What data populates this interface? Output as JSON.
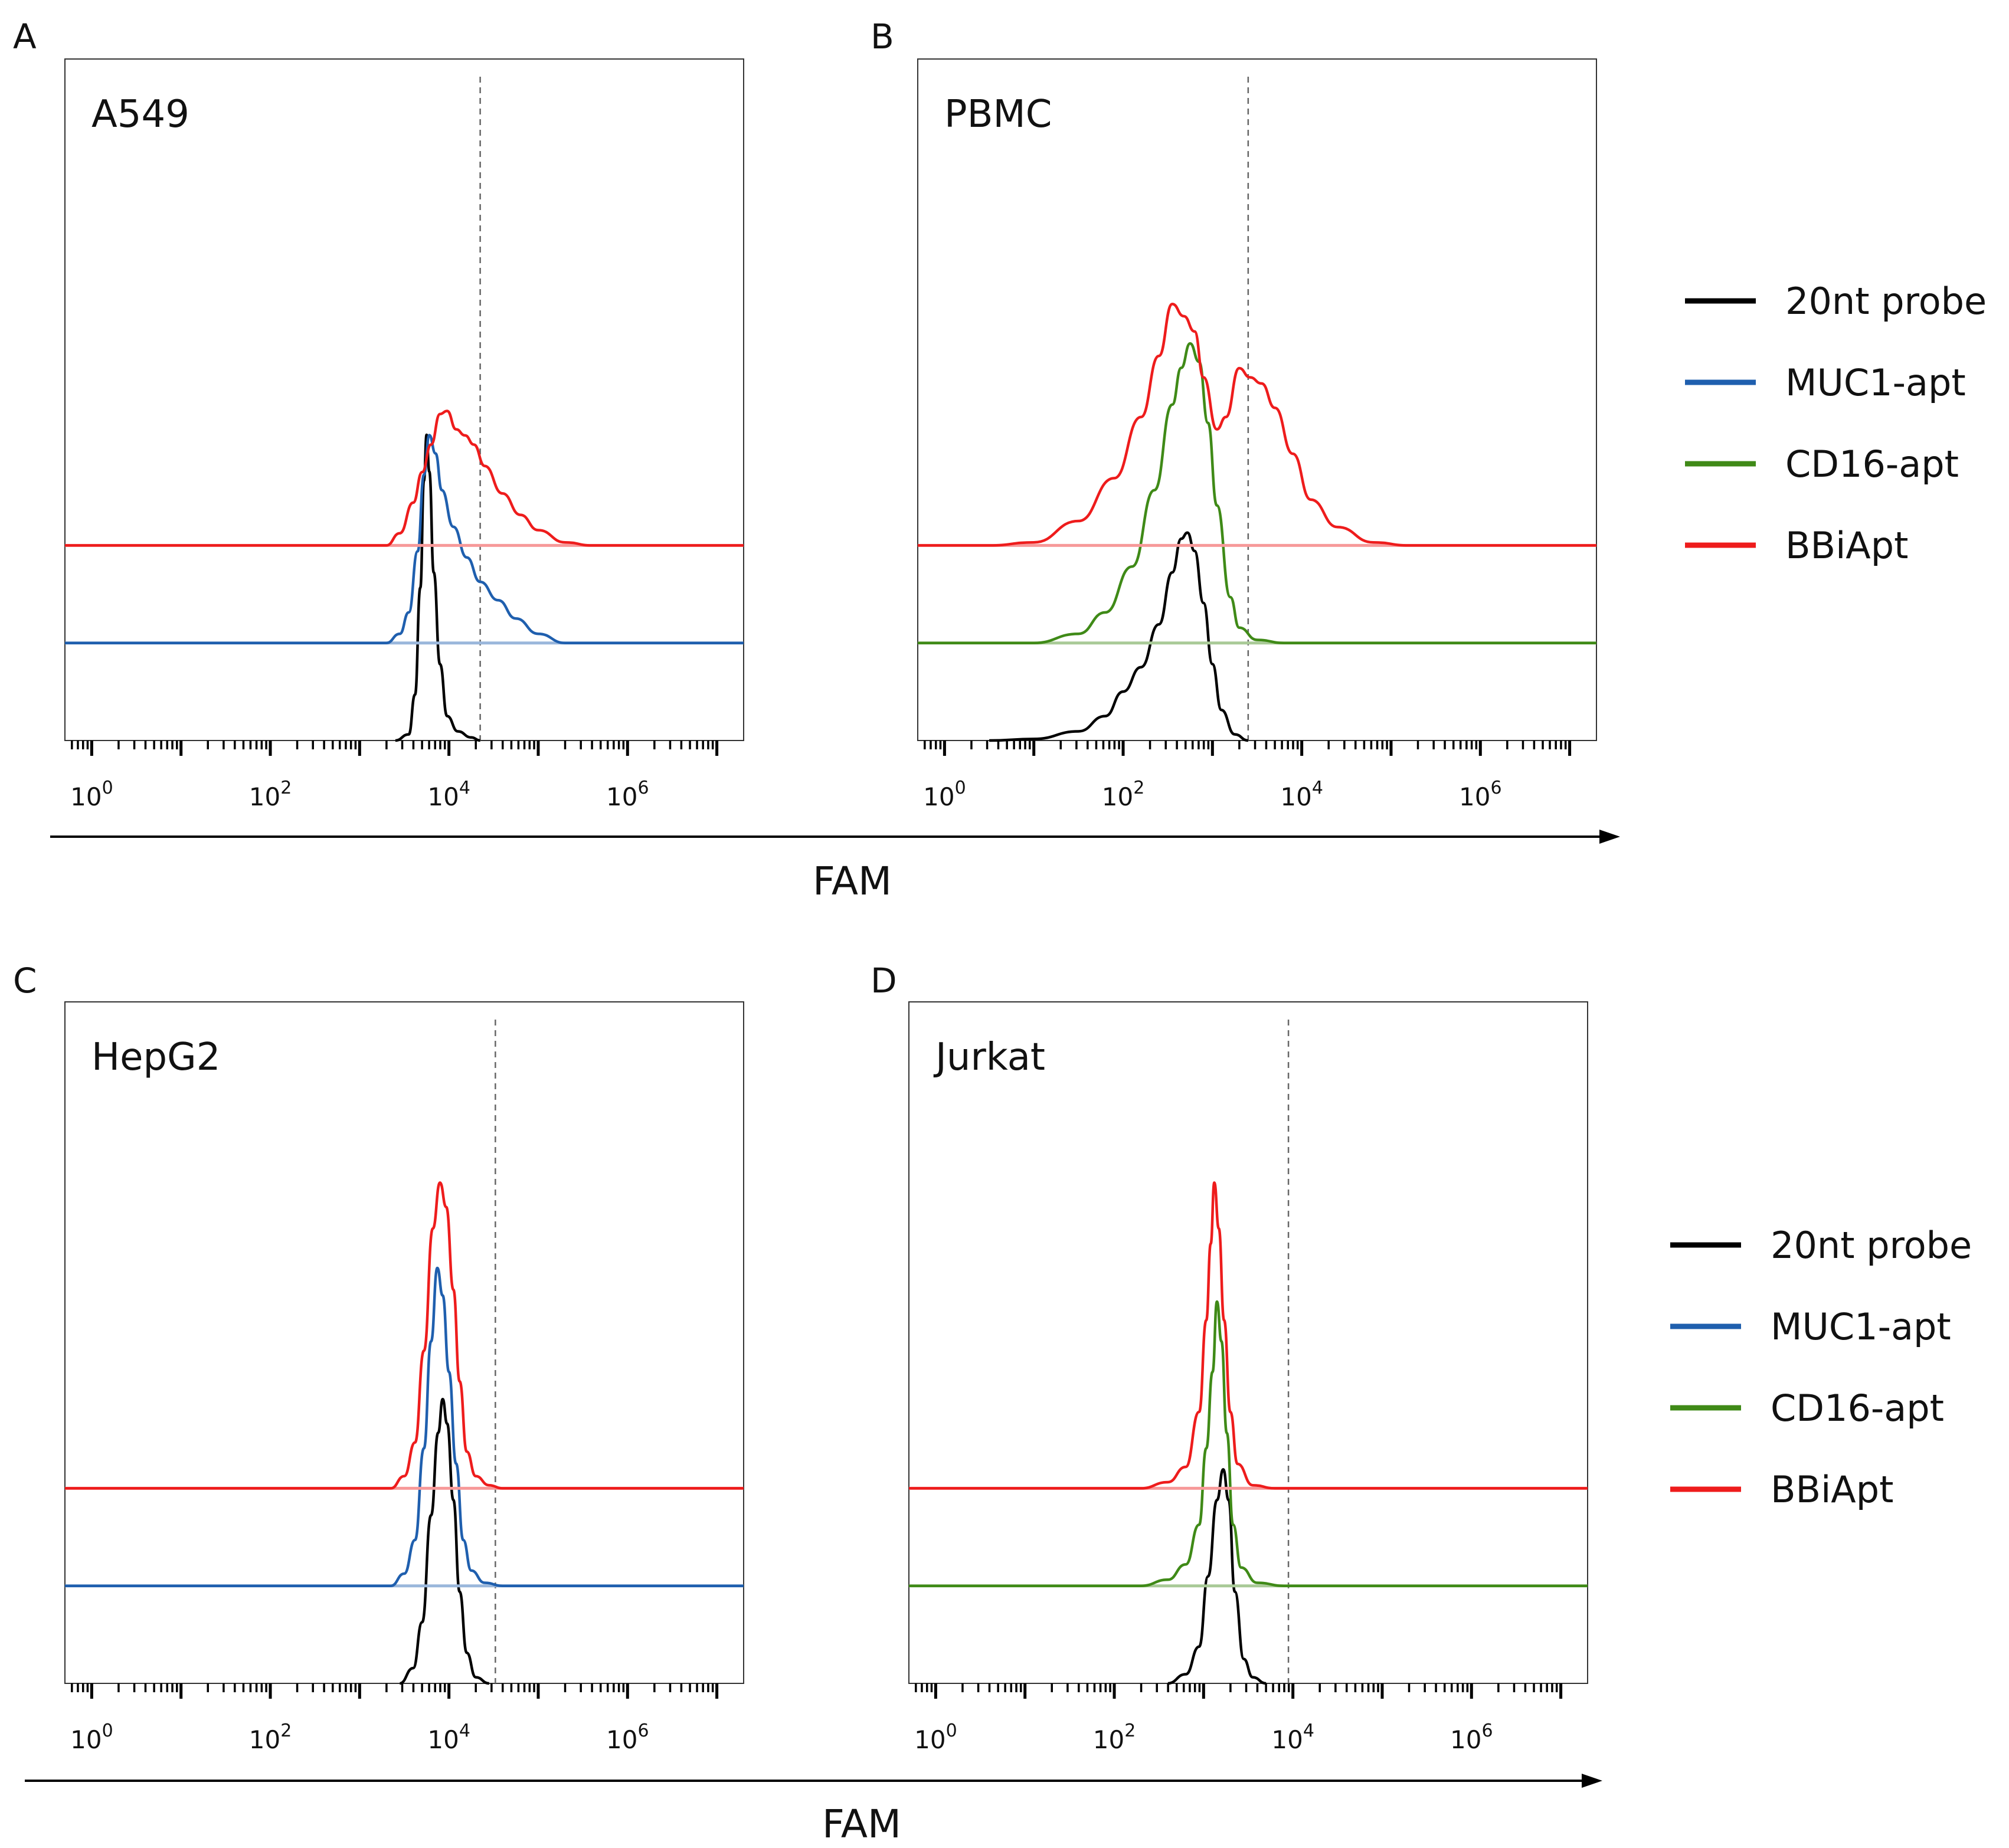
{
  "figure": {
    "x_axis_title": "FAM",
    "legends": [
      {
        "id": "legend-top",
        "entries": [
          {
            "label": "20nt probe",
            "color": "#000000"
          },
          {
            "label": "MUC1-apt",
            "color": "#1f5fae"
          },
          {
            "label": "CD16-apt",
            "color": "#3f8a17"
          },
          {
            "label": "BBiApt",
            "color": "#ee1c1c"
          }
        ]
      },
      {
        "id": "legend-bottom",
        "entries": [
          {
            "label": "20nt probe",
            "color": "#000000"
          },
          {
            "label": "MUC1-apt",
            "color": "#1f5fae"
          },
          {
            "label": "CD16-apt",
            "color": "#3f8a17"
          },
          {
            "label": "BBiApt",
            "color": "#ee1c1c"
          }
        ]
      }
    ]
  },
  "chart_data": [
    {
      "type": "line",
      "panel": "A",
      "cell_label": "A549",
      "xscale": "log10",
      "xlim_log10": [
        -0.3,
        7.3
      ],
      "xticks": [
        {
          "base": "10",
          "exp": "0",
          "log10": 0
        },
        {
          "base": "10",
          "exp": "2",
          "log10": 2
        },
        {
          "base": "10",
          "exp": "4",
          "log10": 4
        },
        {
          "base": "10",
          "exp": "6",
          "log10": 6
        }
      ],
      "gate_log10": 4.35,
      "series": [
        {
          "name": "20nt probe",
          "color": "#000000",
          "offset": 0,
          "points": [
            [
              3.4,
              0
            ],
            [
              3.55,
              0.02
            ],
            [
              3.62,
              0.15
            ],
            [
              3.68,
              0.5
            ],
            [
              3.72,
              0.85
            ],
            [
              3.75,
              1.0
            ],
            [
              3.78,
              0.88
            ],
            [
              3.83,
              0.55
            ],
            [
              3.9,
              0.25
            ],
            [
              3.98,
              0.08
            ],
            [
              4.1,
              0.03
            ],
            [
              4.25,
              0.01
            ],
            [
              4.35,
              0
            ]
          ]
        },
        {
          "name": "MUC1-apt",
          "color": "#1f5fae",
          "offset": 0.57,
          "points": [
            [
              -0.3,
              0
            ],
            [
              3.3,
              0
            ],
            [
              3.45,
              0.03
            ],
            [
              3.55,
              0.1
            ],
            [
              3.65,
              0.3
            ],
            [
              3.72,
              0.55
            ],
            [
              3.78,
              0.68
            ],
            [
              3.85,
              0.62
            ],
            [
              3.92,
              0.5
            ],
            [
              4.05,
              0.38
            ],
            [
              4.2,
              0.28
            ],
            [
              4.35,
              0.2
            ],
            [
              4.55,
              0.14
            ],
            [
              4.75,
              0.08
            ],
            [
              5.0,
              0.03
            ],
            [
              5.3,
              0
            ],
            [
              7.3,
              0
            ]
          ]
        },
        {
          "name": "BBiApt",
          "color": "#ee1c1c",
          "offset": 1.14,
          "points": [
            [
              -0.3,
              0
            ],
            [
              3.3,
              0
            ],
            [
              3.45,
              0.04
            ],
            [
              3.6,
              0.14
            ],
            [
              3.7,
              0.24
            ],
            [
              3.8,
              0.33
            ],
            [
              3.9,
              0.43
            ],
            [
              3.98,
              0.44
            ],
            [
              4.08,
              0.38
            ],
            [
              4.18,
              0.36
            ],
            [
              4.28,
              0.33
            ],
            [
              4.4,
              0.26
            ],
            [
              4.6,
              0.17
            ],
            [
              4.8,
              0.1
            ],
            [
              5.0,
              0.05
            ],
            [
              5.3,
              0.01
            ],
            [
              5.6,
              0
            ],
            [
              7.3,
              0
            ]
          ]
        }
      ]
    },
    {
      "type": "line",
      "panel": "B",
      "cell_label": "PBMC",
      "xscale": "log10",
      "xlim_log10": [
        -0.3,
        7.3
      ],
      "xticks": [
        {
          "base": "10",
          "exp": "0",
          "log10": 0
        },
        {
          "base": "10",
          "exp": "2",
          "log10": 2
        },
        {
          "base": "10",
          "exp": "4",
          "log10": 4
        },
        {
          "base": "10",
          "exp": "6",
          "log10": 6
        }
      ],
      "gate_log10": 3.4,
      "series": [
        {
          "name": "20nt probe",
          "color": "#000000",
          "offset": 0,
          "points": [
            [
              0.5,
              0
            ],
            [
              1.0,
              0.005
            ],
            [
              1.5,
              0.03
            ],
            [
              1.8,
              0.08
            ],
            [
              2.0,
              0.16
            ],
            [
              2.2,
              0.24
            ],
            [
              2.4,
              0.38
            ],
            [
              2.55,
              0.55
            ],
            [
              2.65,
              0.66
            ],
            [
              2.72,
              0.68
            ],
            [
              2.8,
              0.62
            ],
            [
              2.9,
              0.45
            ],
            [
              3.0,
              0.25
            ],
            [
              3.1,
              0.1
            ],
            [
              3.25,
              0.02
            ],
            [
              3.4,
              0
            ]
          ]
        },
        {
          "name": "CD16-apt",
          "color": "#3f8a17",
          "offset": 0.57,
          "points": [
            [
              -0.3,
              0
            ],
            [
              1.0,
              0
            ],
            [
              1.5,
              0.03
            ],
            [
              1.8,
              0.1
            ],
            [
              2.1,
              0.25
            ],
            [
              2.35,
              0.5
            ],
            [
              2.55,
              0.78
            ],
            [
              2.65,
              0.9
            ],
            [
              2.75,
              0.98
            ],
            [
              2.85,
              0.92
            ],
            [
              2.95,
              0.72
            ],
            [
              3.05,
              0.45
            ],
            [
              3.2,
              0.15
            ],
            [
              3.3,
              0.05
            ],
            [
              3.5,
              0.01
            ],
            [
              3.8,
              0
            ],
            [
              7.3,
              0
            ]
          ]
        },
        {
          "name": "BBiApt",
          "color": "#ee1c1c",
          "offset": 1.14,
          "points": [
            [
              -0.3,
              0
            ],
            [
              0.5,
              0
            ],
            [
              1.0,
              0.01
            ],
            [
              1.5,
              0.08
            ],
            [
              1.9,
              0.22
            ],
            [
              2.2,
              0.42
            ],
            [
              2.4,
              0.62
            ],
            [
              2.55,
              0.79
            ],
            [
              2.68,
              0.75
            ],
            [
              2.8,
              0.7
            ],
            [
              2.9,
              0.55
            ],
            [
              3.05,
              0.38
            ],
            [
              3.15,
              0.42
            ],
            [
              3.3,
              0.58
            ],
            [
              3.42,
              0.55
            ],
            [
              3.55,
              0.53
            ],
            [
              3.7,
              0.45
            ],
            [
              3.9,
              0.3
            ],
            [
              4.1,
              0.15
            ],
            [
              4.4,
              0.06
            ],
            [
              4.8,
              0.01
            ],
            [
              5.2,
              0
            ],
            [
              7.3,
              0
            ]
          ]
        }
      ]
    },
    {
      "type": "line",
      "panel": "C",
      "cell_label": "HepG2",
      "xscale": "log10",
      "xlim_log10": [
        -0.3,
        7.3
      ],
      "xticks": [
        {
          "base": "10",
          "exp": "0",
          "log10": 0
        },
        {
          "base": "10",
          "exp": "2",
          "log10": 2
        },
        {
          "base": "10",
          "exp": "4",
          "log10": 4
        },
        {
          "base": "10",
          "exp": "6",
          "log10": 6
        }
      ],
      "gate_log10": 4.52,
      "series": [
        {
          "name": "20nt probe",
          "color": "#000000",
          "offset": 0,
          "points": [
            [
              3.45,
              0
            ],
            [
              3.6,
              0.05
            ],
            [
              3.7,
              0.2
            ],
            [
              3.8,
              0.55
            ],
            [
              3.88,
              0.82
            ],
            [
              3.93,
              0.93
            ],
            [
              3.98,
              0.85
            ],
            [
              4.05,
              0.6
            ],
            [
              4.12,
              0.3
            ],
            [
              4.2,
              0.1
            ],
            [
              4.3,
              0.02
            ],
            [
              4.45,
              0
            ]
          ]
        },
        {
          "name": "MUC1-apt",
          "color": "#1f5fae",
          "offset": 0.57,
          "points": [
            [
              -0.3,
              0
            ],
            [
              3.35,
              0
            ],
            [
              3.5,
              0.04
            ],
            [
              3.62,
              0.15
            ],
            [
              3.72,
              0.45
            ],
            [
              3.8,
              0.8
            ],
            [
              3.87,
              1.04
            ],
            [
              3.93,
              0.95
            ],
            [
              4.0,
              0.7
            ],
            [
              4.08,
              0.4
            ],
            [
              4.16,
              0.15
            ],
            [
              4.25,
              0.05
            ],
            [
              4.4,
              0.01
            ],
            [
              4.6,
              0
            ],
            [
              7.3,
              0
            ]
          ]
        },
        {
          "name": "BBiApt",
          "color": "#ee1c1c",
          "offset": 1.14,
          "points": [
            [
              -0.3,
              0
            ],
            [
              3.35,
              0
            ],
            [
              3.5,
              0.04
            ],
            [
              3.62,
              0.15
            ],
            [
              3.72,
              0.45
            ],
            [
              3.82,
              0.85
            ],
            [
              3.9,
              1.0
            ],
            [
              3.97,
              0.92
            ],
            [
              4.05,
              0.65
            ],
            [
              4.12,
              0.35
            ],
            [
              4.2,
              0.12
            ],
            [
              4.3,
              0.04
            ],
            [
              4.45,
              0.01
            ],
            [
              4.6,
              0
            ],
            [
              7.3,
              0
            ]
          ]
        }
      ]
    },
    {
      "type": "line",
      "panel": "D",
      "cell_label": "Jurkat",
      "xscale": "log10",
      "xlim_log10": [
        -0.3,
        7.3
      ],
      "xticks": [
        {
          "base": "10",
          "exp": "0",
          "log10": 0
        },
        {
          "base": "10",
          "exp": "2",
          "log10": 2
        },
        {
          "base": "10",
          "exp": "4",
          "log10": 4
        },
        {
          "base": "10",
          "exp": "6",
          "log10": 6
        }
      ],
      "gate_log10": 3.95,
      "series": [
        {
          "name": "20nt probe",
          "color": "#000000",
          "offset": 0,
          "points": [
            [
              2.6,
              0
            ],
            [
              2.8,
              0.03
            ],
            [
              2.95,
              0.12
            ],
            [
              3.05,
              0.35
            ],
            [
              3.15,
              0.6
            ],
            [
              3.22,
              0.7
            ],
            [
              3.28,
              0.6
            ],
            [
              3.35,
              0.3
            ],
            [
              3.45,
              0.08
            ],
            [
              3.55,
              0.02
            ],
            [
              3.7,
              0
            ]
          ]
        },
        {
          "name": "CD16-apt",
          "color": "#3f8a17",
          "offset": 0.57,
          "points": [
            [
              -0.3,
              0
            ],
            [
              2.3,
              0
            ],
            [
              2.6,
              0.02
            ],
            [
              2.8,
              0.07
            ],
            [
              2.95,
              0.2
            ],
            [
              3.03,
              0.45
            ],
            [
              3.1,
              0.7
            ],
            [
              3.15,
              0.93
            ],
            [
              3.2,
              0.8
            ],
            [
              3.26,
              0.5
            ],
            [
              3.33,
              0.2
            ],
            [
              3.42,
              0.06
            ],
            [
              3.6,
              0.01
            ],
            [
              3.9,
              0
            ],
            [
              7.3,
              0
            ]
          ]
        },
        {
          "name": "BBiApt",
          "color": "#ee1c1c",
          "offset": 1.14,
          "points": [
            [
              -0.3,
              0
            ],
            [
              2.3,
              0
            ],
            [
              2.6,
              0.02
            ],
            [
              2.8,
              0.07
            ],
            [
              2.95,
              0.25
            ],
            [
              3.03,
              0.55
            ],
            [
              3.08,
              0.8
            ],
            [
              3.12,
              1.0
            ],
            [
              3.17,
              0.85
            ],
            [
              3.23,
              0.55
            ],
            [
              3.3,
              0.25
            ],
            [
              3.38,
              0.08
            ],
            [
              3.55,
              0.01
            ],
            [
              3.8,
              0
            ],
            [
              7.3,
              0
            ]
          ]
        }
      ]
    }
  ]
}
